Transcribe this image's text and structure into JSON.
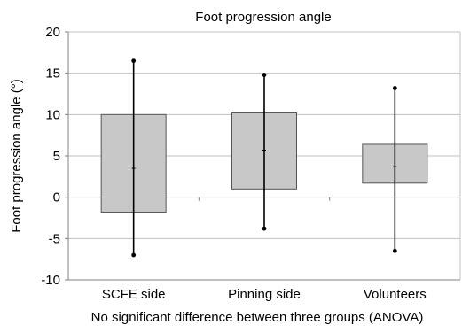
{
  "chart_data": {
    "type": "bar",
    "title": "Foot progression angle",
    "ylabel": "Foot progression angle (°)",
    "xlabel": "No significant difference between three groups (ANOVA)",
    "categories": [
      "SCFE side",
      "Pinning side",
      "Volunteers"
    ],
    "boxes": [
      {
        "category": "SCFE side",
        "low": -1.8,
        "high": 10.0,
        "mean": 3.5,
        "whisker_low": -7.0,
        "whisker_high": 16.5
      },
      {
        "category": "Pinning side",
        "low": 1.0,
        "high": 10.2,
        "mean": 5.7,
        "whisker_low": -3.8,
        "whisker_high": 14.8
      },
      {
        "category": "Volunteers",
        "low": 1.7,
        "high": 6.4,
        "mean": 3.7,
        "whisker_low": -6.5,
        "whisker_high": 13.2
      }
    ],
    "ylim": [
      -10,
      20
    ],
    "yticks": [
      "20",
      "15",
      "10",
      "5",
      "0",
      "-5",
      "-10"
    ],
    "grid": true,
    "colors": {
      "bar_fill": "#c8c8c8",
      "bar_stroke": "#555555",
      "grid": "#c0c0c0",
      "axis": "#808080",
      "whisker": "#000000"
    }
  }
}
